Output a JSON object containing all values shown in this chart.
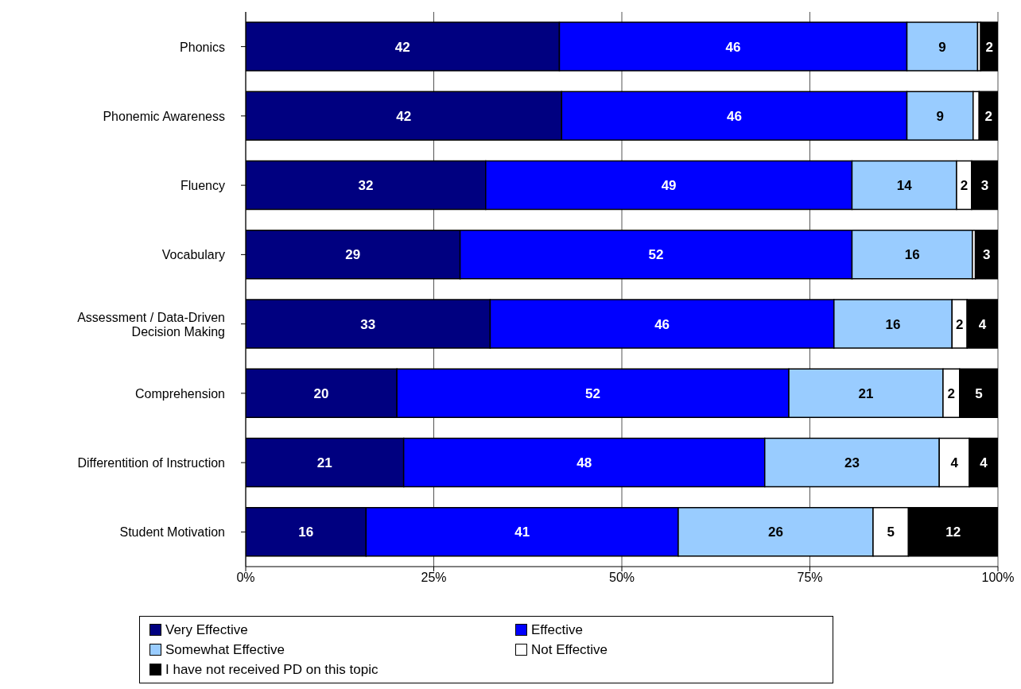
{
  "chart_data": {
    "type": "bar",
    "orientation": "horizontal",
    "stacked": true,
    "categories": [
      "Phonics",
      "Phonemic Awareness",
      "Fluency",
      "Vocabulary",
      "Assessment / Data-Driven Decision Making",
      "Comprehension",
      "Differentition of Instruction",
      "Student Motivation"
    ],
    "series": [
      {
        "name": "Very Effective",
        "color": "#000080",
        "values": [
          41.7,
          42.0,
          31.9,
          28.5,
          32.5,
          20.1,
          21.0,
          16.0
        ],
        "value_labels": [
          "42",
          "42",
          "32",
          "29",
          "33",
          "20",
          "21",
          "16"
        ]
      },
      {
        "name": "Effective",
        "color": "#0000ff",
        "values": [
          46.2,
          45.9,
          48.7,
          52.1,
          45.7,
          52.1,
          48.0,
          41.5
        ],
        "value_labels": [
          "46",
          "46",
          "49",
          "52",
          "46",
          "52",
          "48",
          "41"
        ]
      },
      {
        "name": "Somewhat Effective",
        "color": "#99ccff",
        "values": [
          9.4,
          8.8,
          13.9,
          16.0,
          15.7,
          20.5,
          23.2,
          25.9
        ],
        "value_labels": [
          "9",
          "9",
          "14",
          "16",
          "16",
          "21",
          "23",
          "26"
        ]
      },
      {
        "name": "Not Effective",
        "color": "#ffffff",
        "values": [
          0.4,
          0.8,
          2.0,
          0.4,
          2.0,
          2.2,
          4.0,
          4.7
        ],
        "value_labels": [
          null,
          null,
          "2",
          null,
          "2",
          "2",
          "4",
          "5"
        ]
      },
      {
        "name": "I have not received PD on this topic",
        "color": "#000000",
        "values": [
          2.3,
          2.5,
          3.5,
          3.0,
          4.1,
          5.1,
          3.8,
          11.9
        ],
        "value_labels": [
          "2",
          "2",
          "3",
          "3",
          "4",
          "5",
          "4",
          "12"
        ]
      }
    ],
    "xlim": [
      0,
      100
    ],
    "xticks": [
      {
        "value": 0,
        "label": "0%"
      },
      {
        "value": 25,
        "label": "25%"
      },
      {
        "value": 50,
        "label": "50%"
      },
      {
        "value": 75,
        "label": "75%"
      },
      {
        "value": 100,
        "label": "100%"
      }
    ],
    "grid": "x",
    "legend": "bottom"
  }
}
